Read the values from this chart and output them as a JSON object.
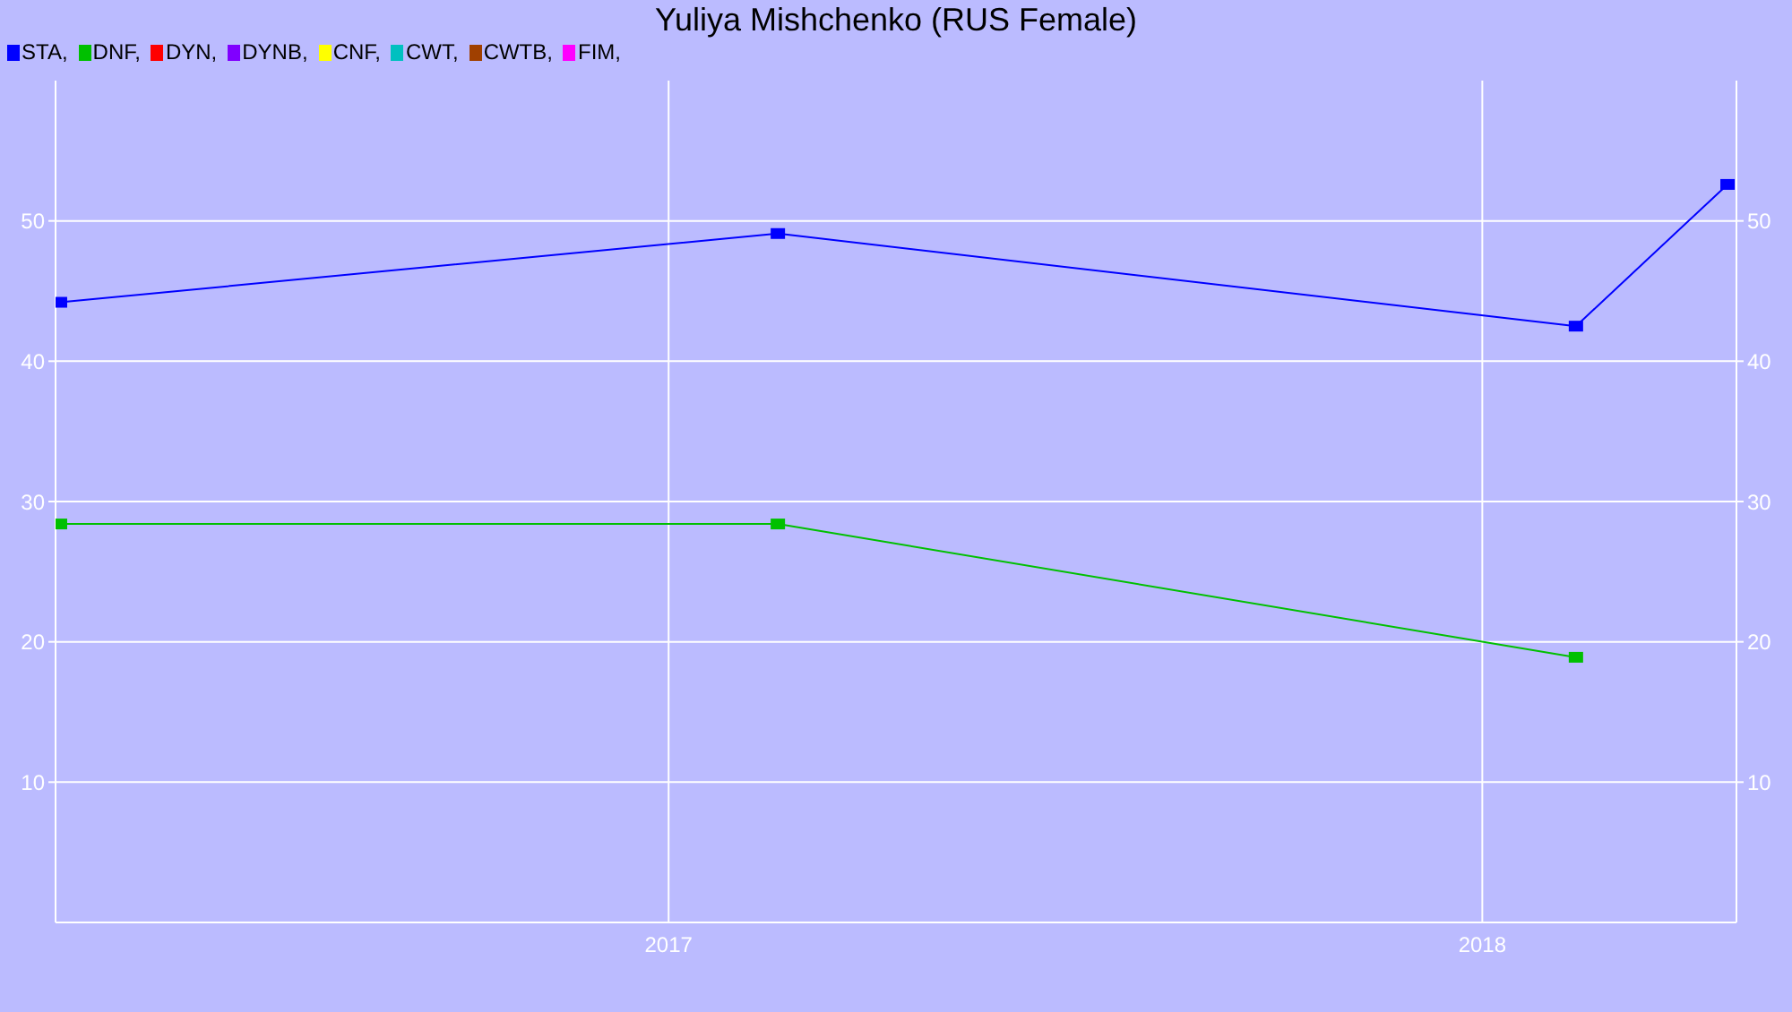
{
  "chart_data": {
    "type": "line",
    "title": "Yuliya Mishchenko (RUS Female)",
    "legend": "top left",
    "marker": "square",
    "grid": true,
    "xlim": [
      "2016-04-01",
      "2018-04-25"
    ],
    "xticks": [
      "2017",
      "2018"
    ],
    "ylim": [
      0,
      60
    ],
    "yticks": [
      10,
      20,
      30,
      40,
      50
    ],
    "y2lim": [
      0,
      60
    ],
    "y2ticks": [
      10,
      20,
      30,
      40,
      50
    ],
    "series": [
      {
        "name": "STA,",
        "color": "#0000ff",
        "x": [
          "2016-04-03",
          "2017-02-19",
          "2018-02-12",
          "2018-04-21"
        ],
        "values": [
          44.2,
          49.1,
          42.5,
          52.6
        ]
      },
      {
        "name": "DNF,",
        "color": "#00c000",
        "x": [
          "2016-04-03",
          "2017-02-19",
          "2018-02-12"
        ],
        "values": [
          28.4,
          28.4,
          18.9
        ]
      },
      {
        "name": "DYN,",
        "color": "#ff0000"
      },
      {
        "name": "DYNB,",
        "color": "#8000ff"
      },
      {
        "name": "CNF,",
        "color": "#ffff00"
      },
      {
        "name": "CWT,",
        "color": "#00c0c0"
      },
      {
        "name": "CWTB,",
        "color": "#a04000"
      },
      {
        "name": "FIM,",
        "color": "#ff00ff"
      }
    ]
  }
}
